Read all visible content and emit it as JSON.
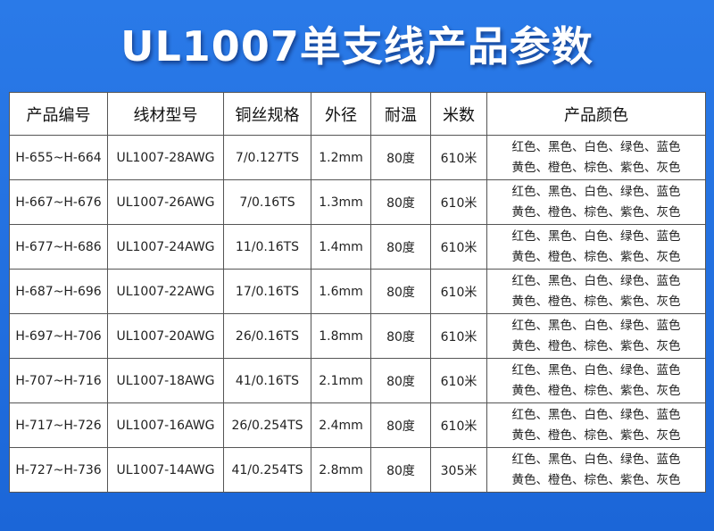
{
  "header": {
    "title": "UL1007单支线产品参数"
  },
  "table": {
    "columns": [
      "产品编号",
      "线材型号",
      "铜丝规格",
      "外径",
      "耐温",
      "米数",
      "产品颜色"
    ],
    "rows": [
      [
        "H-655~H-664",
        "UL1007-28AWG",
        "7/0.127TS",
        "1.2mm",
        "80度",
        "610米",
        "红色、黑色、白色、绿色、蓝色",
        "黄色、橙色、棕色、紫色、灰色"
      ],
      [
        "H-667~H-676",
        "UL1007-26AWG",
        "7/0.16TS",
        "1.3mm",
        "80度",
        "610米",
        "红色、黑色、白色、绿色、蓝色",
        "黄色、橙色、棕色、紫色、灰色"
      ],
      [
        "H-677~H-686",
        "UL1007-24AWG",
        "11/0.16TS",
        "1.4mm",
        "80度",
        "610米",
        "红色、黑色、白色、绿色、蓝色",
        "黄色、橙色、棕色、紫色、灰色"
      ],
      [
        "H-687~H-696",
        "UL1007-22AWG",
        "17/0.16TS",
        "1.6mm",
        "80度",
        "610米",
        "红色、黑色、白色、绿色、蓝色",
        "黄色、橙色、棕色、紫色、灰色"
      ],
      [
        "H-697~H-706",
        "UL1007-20AWG",
        "26/0.16TS",
        "1.8mm",
        "80度",
        "610米",
        "红色、黑色、白色、绿色、蓝色",
        "黄色、橙色、棕色、紫色、灰色"
      ],
      [
        "H-707~H-716",
        "UL1007-18AWG",
        "41/0.16TS",
        "2.1mm",
        "80度",
        "610米",
        "红色、黑色、白色、绿色、蓝色",
        "黄色、橙色、棕色、紫色、灰色"
      ],
      [
        "H-717~H-726",
        "UL1007-16AWG",
        "26/0.254TS",
        "2.4mm",
        "80度",
        "610米",
        "红色、黑色、白色、绿色、蓝色",
        "黄色、橙色、棕色、紫色、灰色"
      ],
      [
        "H-727~H-736",
        "UL1007-14AWG",
        "41/0.254TS",
        "2.8mm",
        "80度",
        "305米",
        "红色、黑色、白色、绿色、蓝色",
        "黄色、橙色、棕色、紫色、灰色"
      ]
    ]
  }
}
